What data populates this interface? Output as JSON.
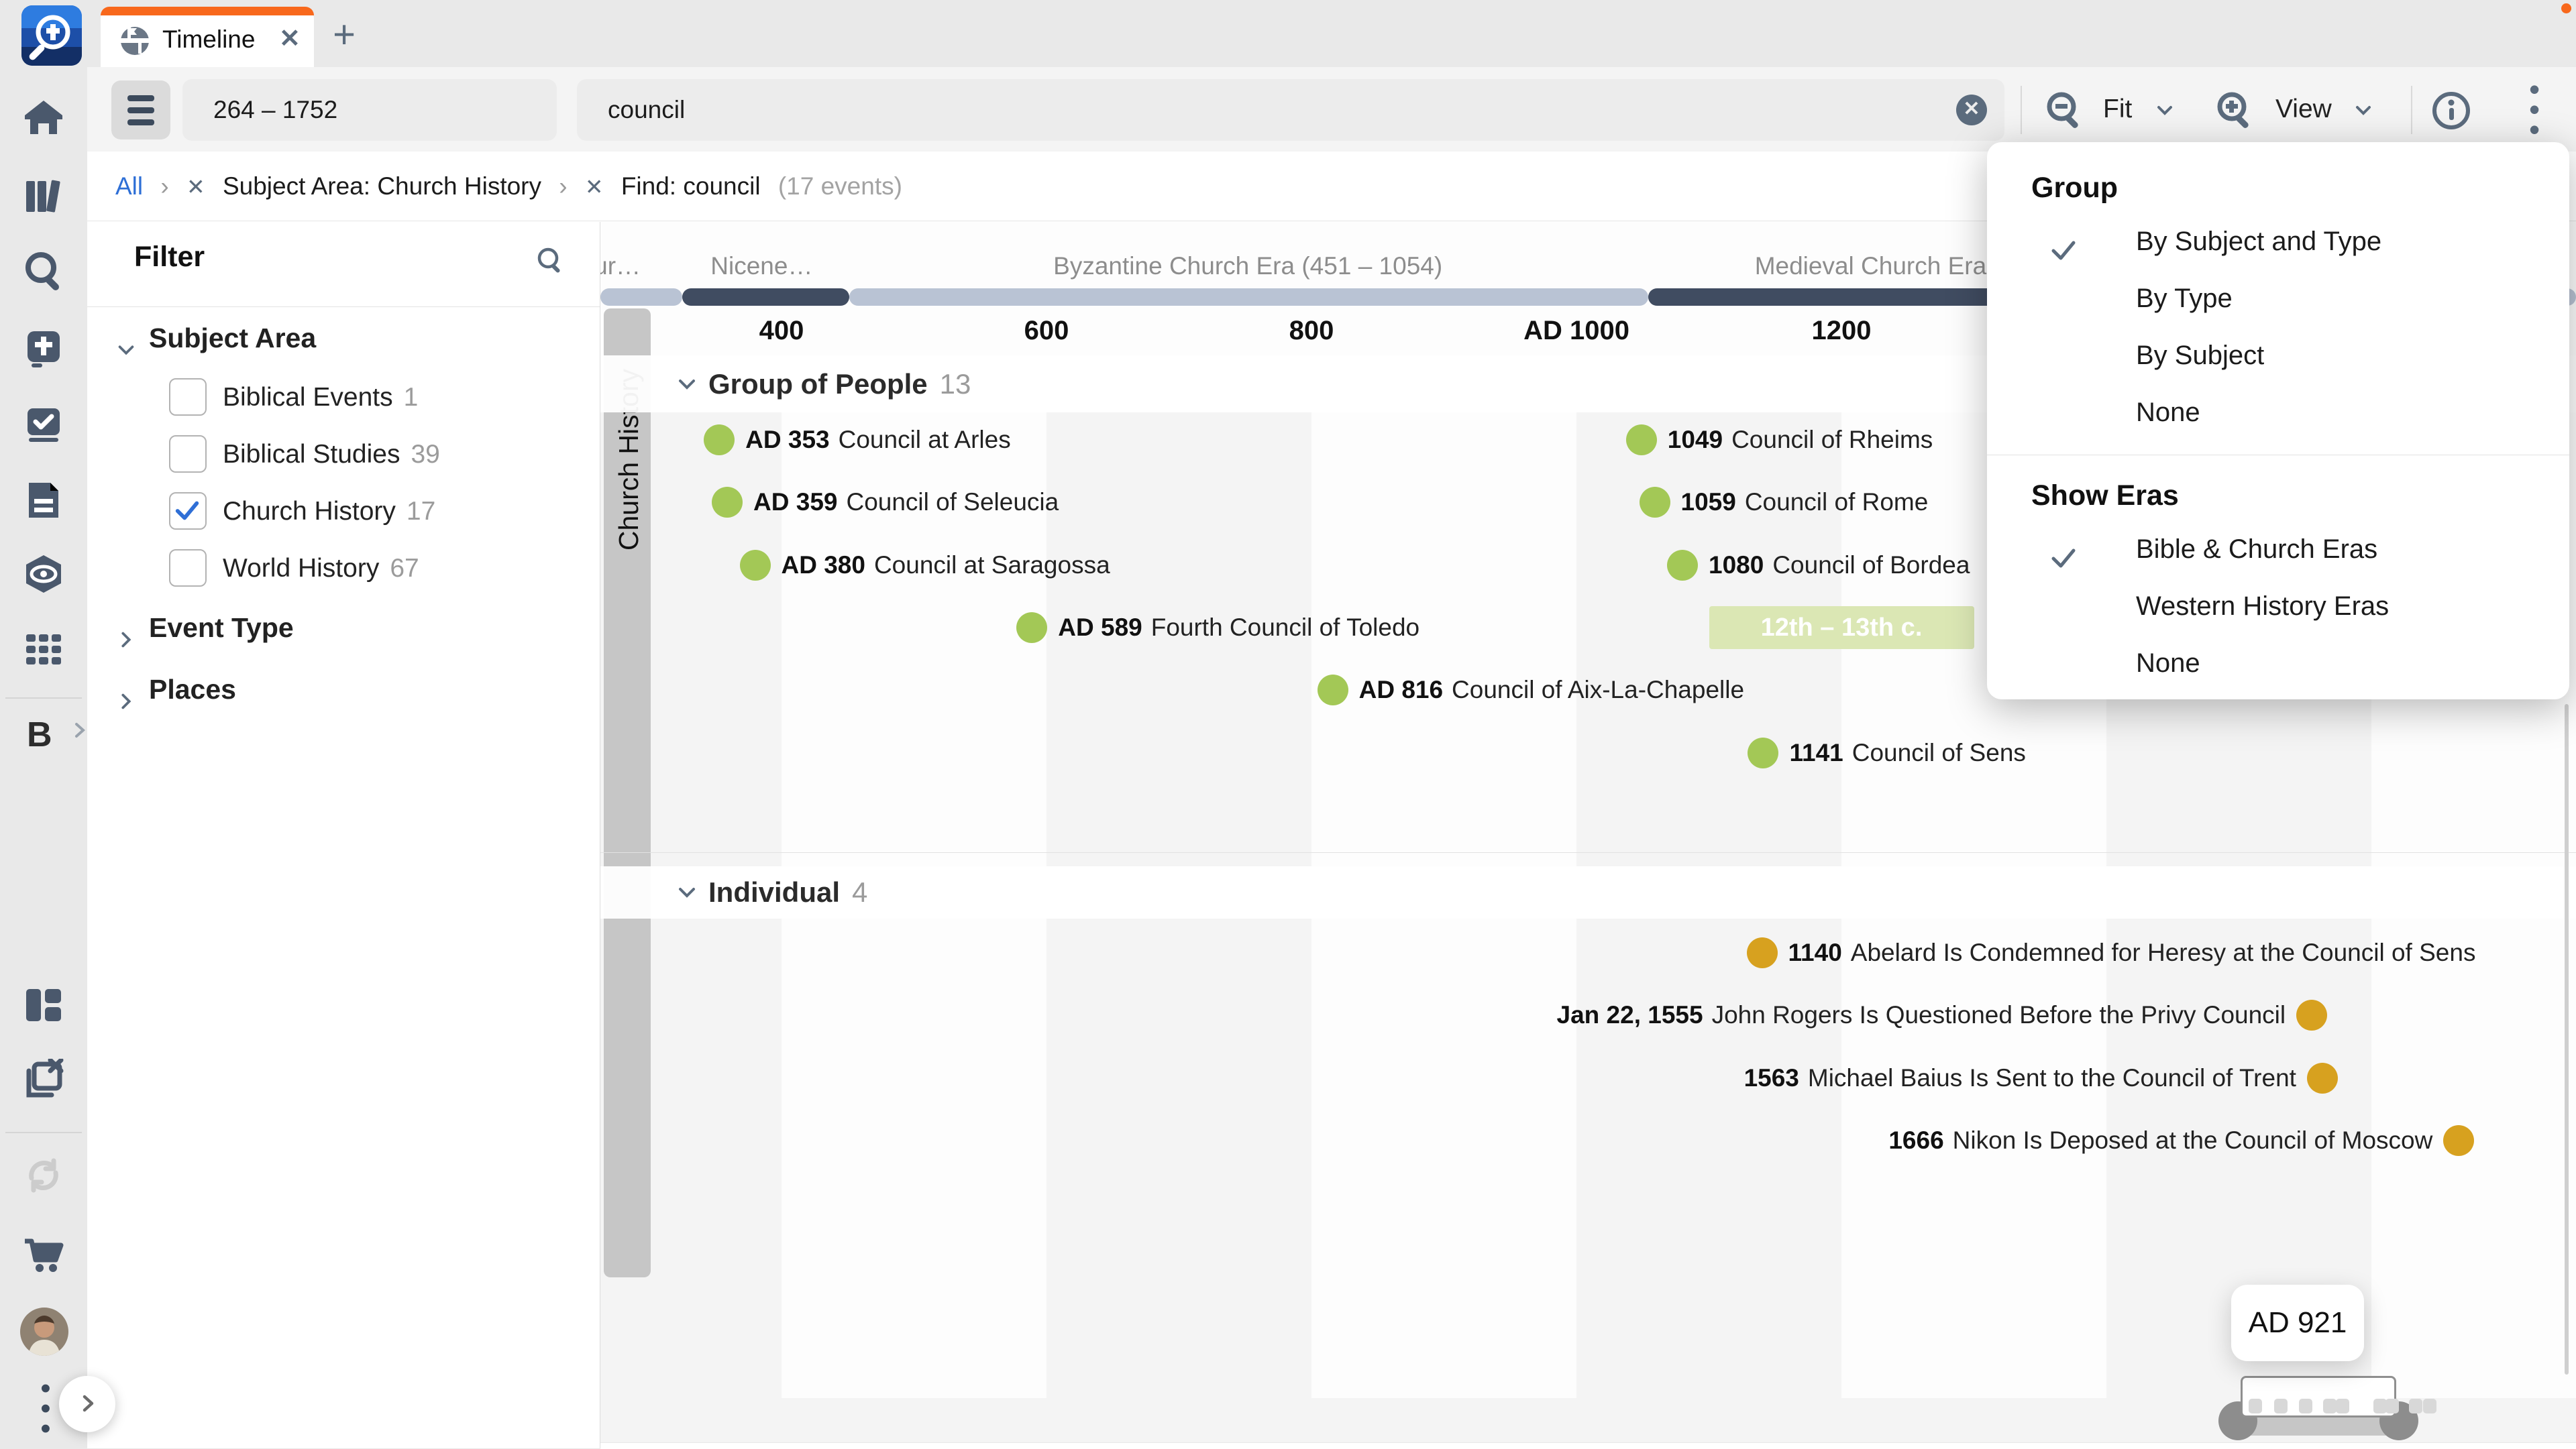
{
  "tab": {
    "title": "Timeline"
  },
  "toolbar": {
    "range_value": "264 – 1752",
    "search_value": "council",
    "fit_label": "Fit",
    "view_label": "View"
  },
  "breadcrumb": {
    "root": "All",
    "crumbs": [
      "Subject Area: Church History",
      "Find: council"
    ],
    "count": "(17 events)"
  },
  "rail": {
    "shortcut_letter": "B"
  },
  "filter": {
    "title": "Filter",
    "subject_section": {
      "label": "Subject Area",
      "expanded": true
    },
    "options": [
      {
        "label": "Biblical Events",
        "count": "1",
        "checked": false
      },
      {
        "label": "Biblical Studies",
        "count": "39",
        "checked": false
      },
      {
        "label": "Church History",
        "count": "17",
        "checked": true
      },
      {
        "label": "World History",
        "count": "67",
        "checked": false
      }
    ],
    "collapsed_sections": [
      {
        "label": "Event Type"
      },
      {
        "label": "Places"
      }
    ]
  },
  "timeline": {
    "group_bar_label": "Church History",
    "tooltip": "AD 921",
    "era_labels": [
      {
        "label": "ur…",
        "year": 276
      },
      {
        "label": "Nicene…",
        "year": 385
      },
      {
        "label": "Byzantine Church Era (451 – 1054)",
        "year": 752
      },
      {
        "label": "Medieval Church Era",
        "year": 1222
      }
    ],
    "era_segments": [
      {
        "from": 100,
        "to": 325,
        "tone": "light"
      },
      {
        "from": 325,
        "to": 451,
        "tone": "dark"
      },
      {
        "from": 451,
        "to": 1054,
        "tone": "light"
      },
      {
        "from": 1054,
        "to": 1517,
        "tone": "dark"
      },
      {
        "from": 1517,
        "to": 1900,
        "tone": "light"
      }
    ],
    "axis_ticks": [
      {
        "label": "400",
        "year": 400
      },
      {
        "label": "600",
        "year": 600
      },
      {
        "label": "800",
        "year": 800
      },
      {
        "label": "AD 1000",
        "year": 1000
      },
      {
        "label": "1200",
        "year": 1200
      }
    ],
    "stripes": [
      {
        "from": 200,
        "to": 400
      },
      {
        "from": 600,
        "to": 800
      },
      {
        "from": 1000,
        "to": 1200
      },
      {
        "from": 1400,
        "to": 1600
      }
    ],
    "sections": [
      {
        "title": "Group of People",
        "count": "13",
        "events": [
          {
            "date": "AD 353",
            "title": "Council at Arles",
            "year": 353,
            "row": 0,
            "side": "left",
            "marker": "green"
          },
          {
            "date": "AD 359",
            "title": "Council of Seleucia",
            "year": 359,
            "row": 1,
            "side": "left",
            "marker": "green"
          },
          {
            "date": "AD 380",
            "title": "Council at Saragossa",
            "year": 380,
            "row": 2,
            "side": "left",
            "marker": "green"
          },
          {
            "date": "AD 589",
            "title": "Fourth Council of Toledo",
            "year": 589,
            "row": 3,
            "side": "left",
            "marker": "green"
          },
          {
            "date": "AD 816",
            "title": "Council of Aix-La-Chapelle",
            "year": 816,
            "row": 4,
            "side": "left",
            "marker": "green"
          },
          {
            "date": "1049",
            "title": "Council of Rheims",
            "year": 1049,
            "row": 0,
            "side": "left",
            "marker": "green"
          },
          {
            "date": "1059",
            "title": "Council of Rome",
            "year": 1059,
            "row": 1,
            "side": "left",
            "marker": "green"
          },
          {
            "date": "1080",
            "title": "Council of Bordea",
            "year": 1080,
            "row": 2,
            "side": "left",
            "marker": "green"
          },
          {
            "date": "1141",
            "title": "Council of Sens",
            "year": 1141,
            "row": 5,
            "side": "left",
            "marker": "green"
          }
        ],
        "range_pill": {
          "label": "12th – 13th c.",
          "from": 1100,
          "to": 1300,
          "row": 3
        }
      },
      {
        "title": "Individual",
        "count": "4",
        "events": [
          {
            "date": "1140",
            "title": "Abelard Is Condemned for Heresy at the Council of Sens",
            "year": 1140,
            "row": 0,
            "side": "left",
            "marker": "gold"
          },
          {
            "date": "Jan 22, 1555",
            "title": "John Rogers Is Questioned Before the Privy Council",
            "year": 1555,
            "row": 1,
            "side": "right",
            "marker": "gold"
          },
          {
            "date": "1563",
            "title": "Michael Baius Is Sent to the Council of Trent",
            "year": 1563,
            "row": 2,
            "side": "right",
            "marker": "gold"
          },
          {
            "date": "1666",
            "title": "Nikon Is Deposed at the Council of Moscow",
            "year": 1666,
            "row": 3,
            "side": "right",
            "marker": "gold"
          }
        ]
      }
    ]
  },
  "menu": {
    "sections": [
      {
        "header": "Group",
        "items": [
          {
            "label": "By Subject and Type",
            "checked": true
          },
          {
            "label": "By Type",
            "checked": false
          },
          {
            "label": "By Subject",
            "checked": false
          },
          {
            "label": "None",
            "checked": false
          }
        ]
      },
      {
        "header": "Show Eras",
        "items": [
          {
            "label": "Bible & Church Eras",
            "checked": true
          },
          {
            "label": "Western History Eras",
            "checked": false
          },
          {
            "label": "None",
            "checked": false
          }
        ]
      }
    ]
  },
  "colors": {
    "accent_orange": "#f8681c",
    "link_blue": "#2e6fd6",
    "check_blue": "#2f6fd6",
    "era_dark": "#404c61",
    "era_light": "#b9c3d4",
    "marker_green": "#a3c856",
    "marker_gold": "#d7a11f"
  }
}
